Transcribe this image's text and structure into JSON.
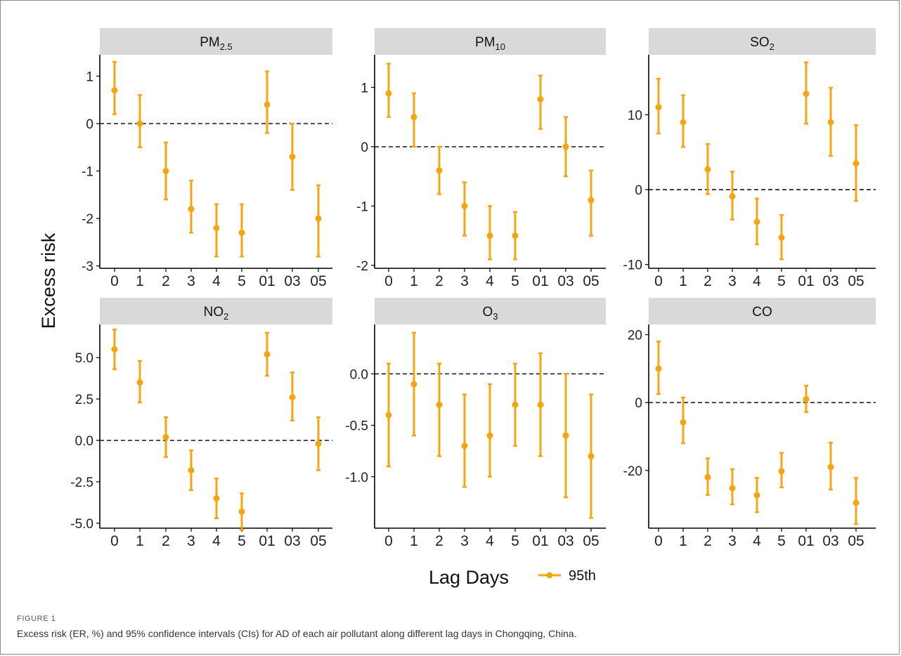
{
  "figure": {
    "label": "FIGURE 1",
    "caption": "Excess risk (ER, %) and 95% confidence intervals (CIs) for AD of each air pollutant along different lag days in Chongqing, China."
  },
  "colors": {
    "series": "#F5A512",
    "strip": "#d9d9d9",
    "axis": "#000000",
    "reference_line": "#000000"
  },
  "chart_data": {
    "type": "errorbar",
    "ylabel": "Excess risk",
    "xlabel": "Lag Days",
    "legend": {
      "placement": "bottom",
      "entries": [
        {
          "name": "95th"
        }
      ]
    },
    "categories": [
      "0",
      "1",
      "2",
      "3",
      "4",
      "5",
      "01",
      "03",
      "05"
    ],
    "reference_line": 0,
    "grid": false,
    "panels": [
      {
        "name": "PM",
        "subscript": "2.5",
        "ylim": [
          -3.05,
          1.45
        ],
        "yticks": [
          -3,
          -2,
          -1,
          0,
          1
        ],
        "ytick_labels": [
          "-3",
          "-2",
          "-1",
          "0",
          "1"
        ],
        "estimate": [
          0.7,
          0.0,
          -1.0,
          -1.8,
          -2.2,
          -2.3,
          0.4,
          -0.7,
          -2.0
        ],
        "lower": [
          0.2,
          -0.5,
          -1.6,
          -2.3,
          -2.8,
          -2.8,
          -0.2,
          -1.4,
          -2.8
        ],
        "upper": [
          1.3,
          0.6,
          -0.4,
          -1.2,
          -1.7,
          -1.7,
          1.1,
          0.0,
          -1.3
        ]
      },
      {
        "name": "PM",
        "subscript": "10",
        "ylim": [
          -2.05,
          1.55
        ],
        "yticks": [
          -2,
          -1,
          0,
          1
        ],
        "ytick_labels": [
          "-2",
          "-1",
          "0",
          "1"
        ],
        "estimate": [
          0.9,
          0.5,
          -0.4,
          -1.0,
          -1.5,
          -1.5,
          0.8,
          0.0,
          -0.9
        ],
        "lower": [
          0.5,
          0.0,
          -0.8,
          -1.5,
          -1.9,
          -1.9,
          0.3,
          -0.5,
          -1.5
        ],
        "upper": [
          1.4,
          0.9,
          0.0,
          -0.6,
          -1.0,
          -1.1,
          1.2,
          0.5,
          -0.4
        ]
      },
      {
        "name": "SO",
        "subscript": "2",
        "ylim": [
          -10.5,
          18.0
        ],
        "yticks": [
          -10,
          0,
          10
        ],
        "ytick_labels": [
          "-10",
          "0",
          "10"
        ],
        "estimate": [
          11.0,
          9.0,
          2.7,
          -0.9,
          -4.3,
          -6.4,
          12.8,
          9.0,
          3.5
        ],
        "lower": [
          7.5,
          5.7,
          -0.6,
          -4.0,
          -7.3,
          -9.3,
          8.8,
          4.5,
          -1.5
        ],
        "upper": [
          14.8,
          12.6,
          6.1,
          2.4,
          -1.2,
          -3.4,
          17.0,
          13.6,
          8.6
        ]
      },
      {
        "name": "NO",
        "subscript": "2",
        "ylim": [
          -5.3,
          7.0
        ],
        "yticks": [
          -5,
          -2.5,
          0,
          2.5,
          5
        ],
        "ytick_labels": [
          "-5.0",
          "-2.5",
          "0.0",
          "2.5",
          "5.0"
        ],
        "estimate": [
          5.5,
          3.5,
          0.2,
          -1.8,
          -3.5,
          -4.3,
          5.2,
          2.6,
          -0.2
        ],
        "lower": [
          4.3,
          2.3,
          -1.0,
          -3.0,
          -4.7,
          -5.4,
          3.9,
          1.2,
          -1.8
        ],
        "upper": [
          6.7,
          4.8,
          1.4,
          -0.6,
          -2.3,
          -3.2,
          6.5,
          4.1,
          1.4
        ]
      },
      {
        "name": "O",
        "subscript": "3",
        "ylim": [
          -1.5,
          0.48
        ],
        "yticks": [
          -1.0,
          -0.5,
          0.0
        ],
        "ytick_labels": [
          "-1.0",
          "-0.5",
          "0.0"
        ],
        "estimate": [
          -0.4,
          -0.1,
          -0.3,
          -0.7,
          -0.6,
          -0.3,
          -0.3,
          -0.6,
          -0.8
        ],
        "lower": [
          -0.9,
          -0.6,
          -0.8,
          -1.1,
          -1.0,
          -0.7,
          -0.8,
          -1.2,
          -1.4
        ],
        "upper": [
          0.1,
          0.4,
          0.1,
          -0.2,
          -0.1,
          0.1,
          0.2,
          0.0,
          -0.2
        ]
      },
      {
        "name": "CO",
        "subscript": "",
        "ylim": [
          -37.0,
          23.0
        ],
        "yticks": [
          -20,
          0,
          20
        ],
        "ytick_labels": [
          "-20",
          "0",
          "20"
        ],
        "estimate": [
          10.0,
          -5.8,
          -22.0,
          -25.2,
          -27.3,
          -20.2,
          1.0,
          -19.0,
          -29.5
        ],
        "lower": [
          2.5,
          -12.0,
          -27.2,
          -30.0,
          -32.3,
          -25.0,
          -2.8,
          -25.6,
          -35.8
        ],
        "upper": [
          18.0,
          1.5,
          -16.4,
          -19.6,
          -22.2,
          -14.8,
          5.0,
          -11.8,
          -22.2
        ]
      }
    ]
  }
}
